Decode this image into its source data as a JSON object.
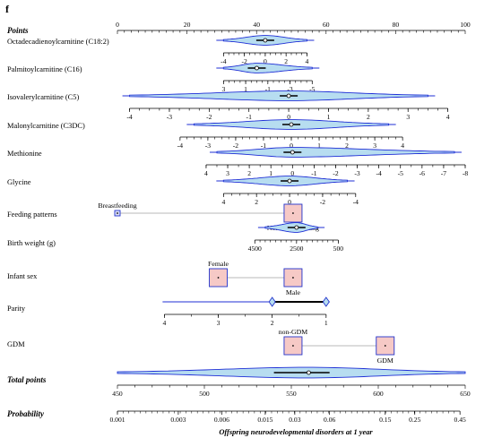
{
  "panel_label": "f",
  "colors": {
    "axis": "#000000",
    "violin_stroke": "#1f2fd6",
    "violin_fill": "#b7ddf0",
    "box_fill": "#f6c9c6",
    "box_stroke": "#2233cc",
    "connector": "#b8b8b8"
  },
  "chart_data": {
    "type": "nomogram",
    "points_axis": {
      "label": "Points",
      "range": [
        0,
        100
      ],
      "ticks": [
        "0",
        "20",
        "40",
        "60",
        "80",
        "100"
      ]
    },
    "rows": [
      {
        "kind": "continuous",
        "label": "Octadecadienoylcarnitine (C18:2)",
        "scale": {
          "min": -4,
          "max": 4,
          "minor_step": 0.5,
          "labels": [
            "-4",
            "-2",
            "0",
            "2",
            "4"
          ]
        },
        "points_min": 30.5,
        "points_max": 54.5,
        "violin": {
          "from": -4.0,
          "to": 4.0,
          "peak_at": 0
        },
        "median": 0
      },
      {
        "kind": "continuous",
        "label": "Palmitoylcarnitine (C16)",
        "scale": {
          "min": -5,
          "max": 3,
          "minor_step": 0.5,
          "labels": [
            "3",
            "1",
            "-1",
            "-3",
            "-5"
          ]
        },
        "points_min": 30.5,
        "points_max": 56.0,
        "reversed": true,
        "violin": {
          "from": 3.0,
          "to": -5.0,
          "peak_at": 0
        },
        "median": 0
      },
      {
        "kind": "continuous",
        "label": "Isovalerylcarnitine (C5)",
        "scale": {
          "min": -4,
          "max": 4,
          "minor_step": 0.25,
          "labels": [
            "-4",
            "-3",
            "-2",
            "-1",
            "0",
            "1",
            "2",
            "3",
            "4"
          ]
        },
        "points_min": 3.5,
        "points_max": 95.0,
        "violin": {
          "from": -4.0,
          "to": 3.5,
          "peak_at": 0
        },
        "median": 0
      },
      {
        "kind": "continuous",
        "label": "Malonylcarnitine (C3DC)",
        "scale": {
          "min": -4,
          "max": 4,
          "minor_step": 0.25,
          "labels": [
            "-4",
            "-3",
            "-2",
            "-1",
            "0",
            "1",
            "2",
            "3",
            "4"
          ]
        },
        "points_min": 18.0,
        "points_max": 82.0,
        "violin": {
          "from": -3.5,
          "to": 3.5,
          "peak_at": 0
        },
        "median": 0
      },
      {
        "kind": "continuous",
        "label": "Methionine",
        "scale": {
          "min": -8,
          "max": 4,
          "minor_step": 0.5,
          "labels": [
            "4",
            "3",
            "2",
            "1",
            "0",
            "-1",
            "-2",
            "-3",
            "-4",
            "-5",
            "-6",
            "-7",
            "-8"
          ]
        },
        "points_min": 25.5,
        "points_max": 100.0,
        "reversed": true,
        "violin": {
          "from": 3.5,
          "to": -7.5,
          "peak_at": 0
        },
        "median": 0
      },
      {
        "kind": "continuous",
        "label": "Glycine",
        "scale": {
          "min": -4,
          "max": 4,
          "minor_step": 0.5,
          "labels": [
            "4",
            "2",
            "0",
            "-2",
            "-4"
          ]
        },
        "points_min": 30.5,
        "points_max": 68.5,
        "reversed": true,
        "violin": {
          "from": 4.0,
          "to": -3.5,
          "peak_at": 0
        },
        "median": 0
      },
      {
        "kind": "categorical",
        "label": "Feeding patterns",
        "categories": [
          {
            "name": "Breastfeeding",
            "points": 0.0,
            "size": "small",
            "label_pos": "above"
          },
          {
            "name": "Non-breastfeeding",
            "points": 50.5,
            "size": "large",
            "label_pos": "below"
          }
        ]
      },
      {
        "kind": "continuous",
        "label": "Birth weight (g)",
        "scale": {
          "min": 500,
          "max": 4500,
          "minor_step": 250,
          "labels": [
            "4500",
            "2500",
            "500"
          ]
        },
        "points_min": 39.5,
        "points_max": 63.5,
        "reversed": true,
        "violin": {
          "from": 4000,
          "to": 1500,
          "peak_at": 2500
        },
        "median": 2500
      },
      {
        "kind": "categorical",
        "label": "Infant sex",
        "categories": [
          {
            "name": "Female",
            "points": 29.0,
            "size": "large",
            "label_pos": "above"
          },
          {
            "name": "Male",
            "points": 50.5,
            "size": "large",
            "label_pos": "below"
          }
        ]
      },
      {
        "kind": "continuous",
        "label": "Parity",
        "scale": {
          "min": 1,
          "max": 4,
          "minor_step": 0.5,
          "labels": [
            "4",
            "3",
            "2",
            "1"
          ]
        },
        "points_min": 13.5,
        "points_max": 60.0,
        "reversed": true,
        "diamonds": [
          2,
          1
        ],
        "bold_range": [
          2,
          1
        ]
      },
      {
        "kind": "categorical",
        "label": "GDM",
        "categories": [
          {
            "name": "non-GDM",
            "points": 50.5,
            "size": "large",
            "label_pos": "above"
          },
          {
            "name": "GDM",
            "points": 77.0,
            "size": "large",
            "label_pos": "below"
          }
        ]
      }
    ],
    "total_points_axis": {
      "label": "Total points",
      "range": [
        450,
        650
      ],
      "minor_step": 10,
      "ticks": [
        "450",
        "500",
        "550",
        "600",
        "650"
      ],
      "violin": {
        "from": 450,
        "to": 650,
        "peak_at": 560
      },
      "median": 560
    },
    "probability_axis": {
      "label": "Probability",
      "ticks": [
        "0.001",
        "0.003",
        "0.006",
        "0.015",
        "0.03",
        "0.06",
        "0.15",
        "0.25",
        "0.45"
      ],
      "tick_total_points": [
        450,
        485,
        510,
        535,
        552,
        572,
        604,
        621,
        647
      ],
      "xlabel": "Offspring neurodevelopmental disorders at 1 year"
    }
  }
}
